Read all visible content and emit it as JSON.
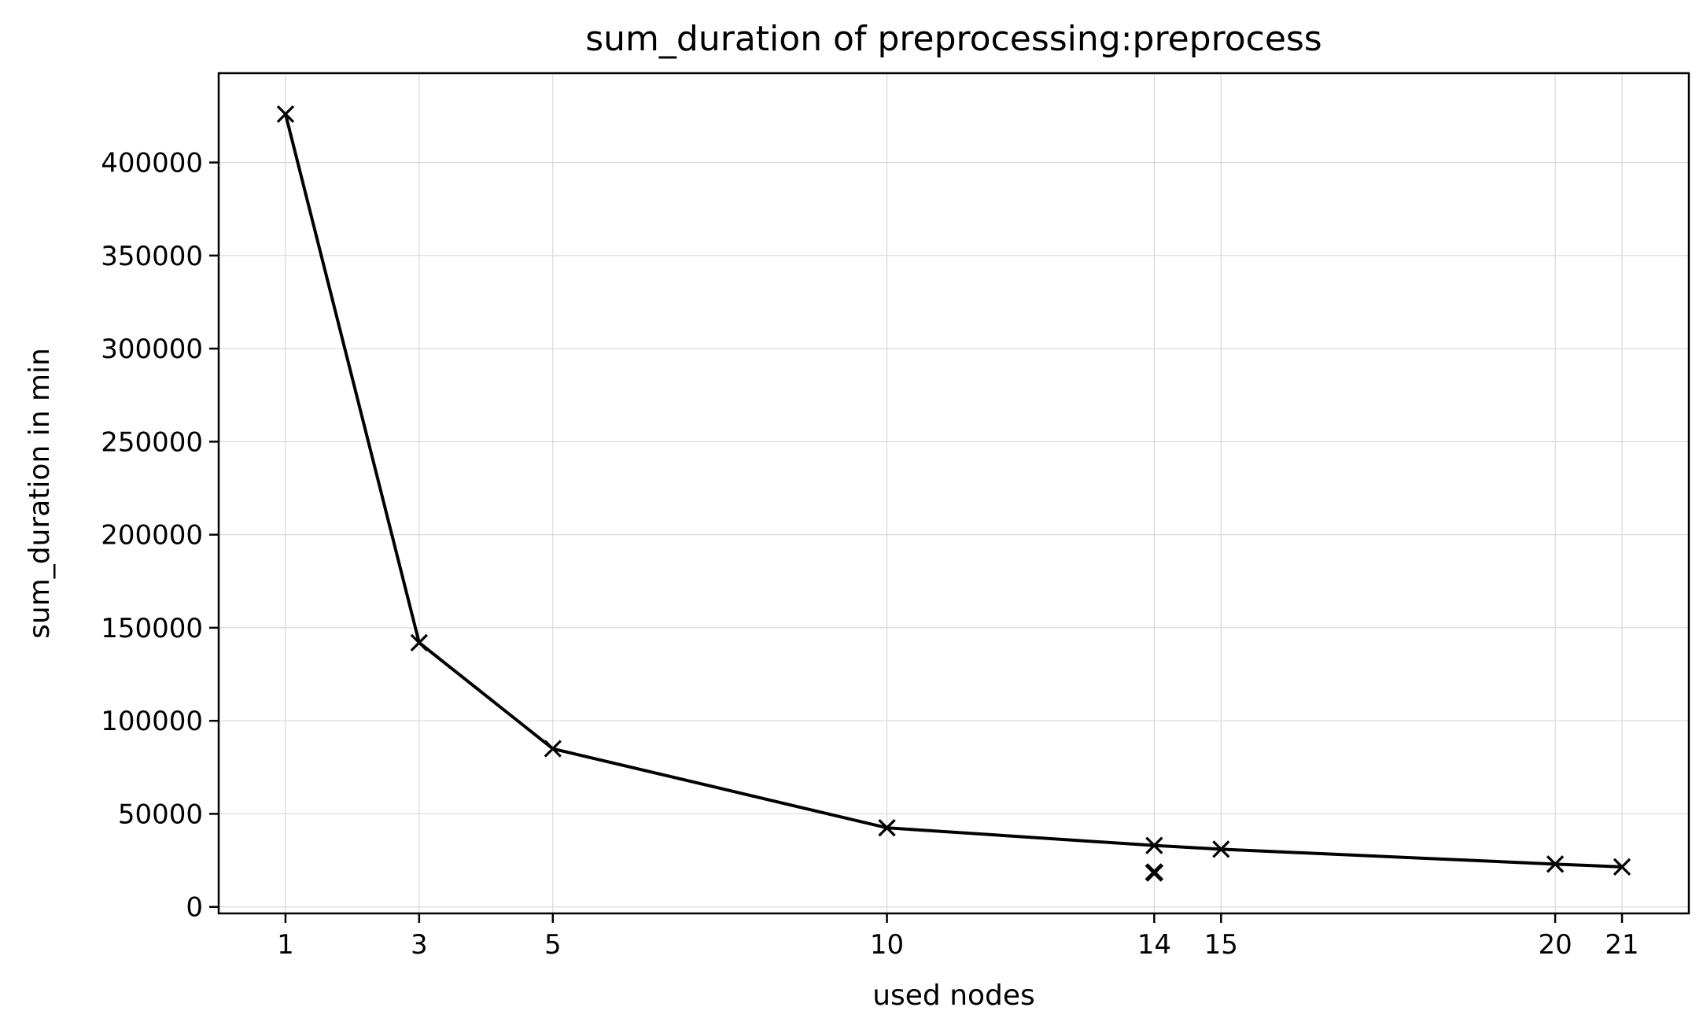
{
  "chart_data": {
    "type": "line",
    "title": "sum_duration of preprocessing:preprocess",
    "xlabel": "used nodes",
    "ylabel": "sum_duration in min",
    "xlim": [
      0,
      22
    ],
    "ylim": [
      0,
      448000
    ],
    "x_ticks": [
      1,
      3,
      5,
      10,
      14,
      15,
      20,
      21
    ],
    "y_ticks": [
      0,
      50000,
      100000,
      150000,
      200000,
      250000,
      300000,
      350000,
      400000
    ],
    "grid": true,
    "series": [
      {
        "x": [
          1,
          3,
          5,
          10,
          14,
          15,
          20,
          21
        ],
        "values": [
          426000,
          142000,
          85000,
          42500,
          33000,
          31000,
          23000,
          21500
        ],
        "marker": "x",
        "color": "#000000"
      }
    ],
    "extra_points": [
      {
        "x": 14,
        "y": 18500,
        "marker": "x"
      }
    ]
  }
}
